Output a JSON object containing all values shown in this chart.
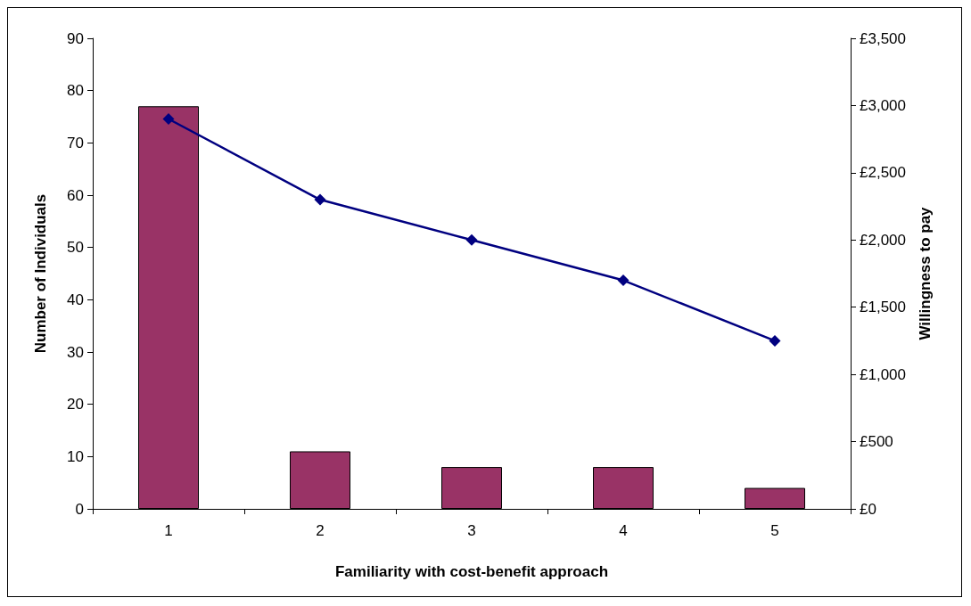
{
  "chart_data": {
    "type": "bar",
    "xlabel": "Familiarity with cost-benefit approach",
    "ylabel": "Number of Individuals",
    "y2label": "Willingness to pay",
    "categories": [
      "1",
      "2",
      "3",
      "4",
      "5"
    ],
    "series": [
      {
        "color": "#993366",
        "values": [
          77,
          11,
          8,
          8,
          4
        ]
      },
      {
        "type": "line",
        "axis": "y2",
        "color": "#000080",
        "marker": "diamond",
        "line_style": "solid",
        "values": [
          2900,
          2300,
          2000,
          1700,
          1250
        ]
      }
    ],
    "ylim": [
      0,
      90
    ],
    "yticks": [
      0,
      10,
      20,
      30,
      40,
      50,
      60,
      70,
      80,
      90
    ],
    "y2lim": [
      0,
      3500
    ],
    "y2ticks": [
      {
        "value": 0,
        "label": "£0"
      },
      {
        "value": 500,
        "label": "£500"
      },
      {
        "value": 1000,
        "label": "£1,000"
      },
      {
        "value": 1500,
        "label": "£1,500"
      },
      {
        "value": 2000,
        "label": "£2,000"
      },
      {
        "value": 2500,
        "label": "£2,500"
      },
      {
        "value": 3000,
        "label": "£3,000"
      },
      {
        "value": 3500,
        "label": "£3,500"
      }
    ],
    "grid": false
  }
}
